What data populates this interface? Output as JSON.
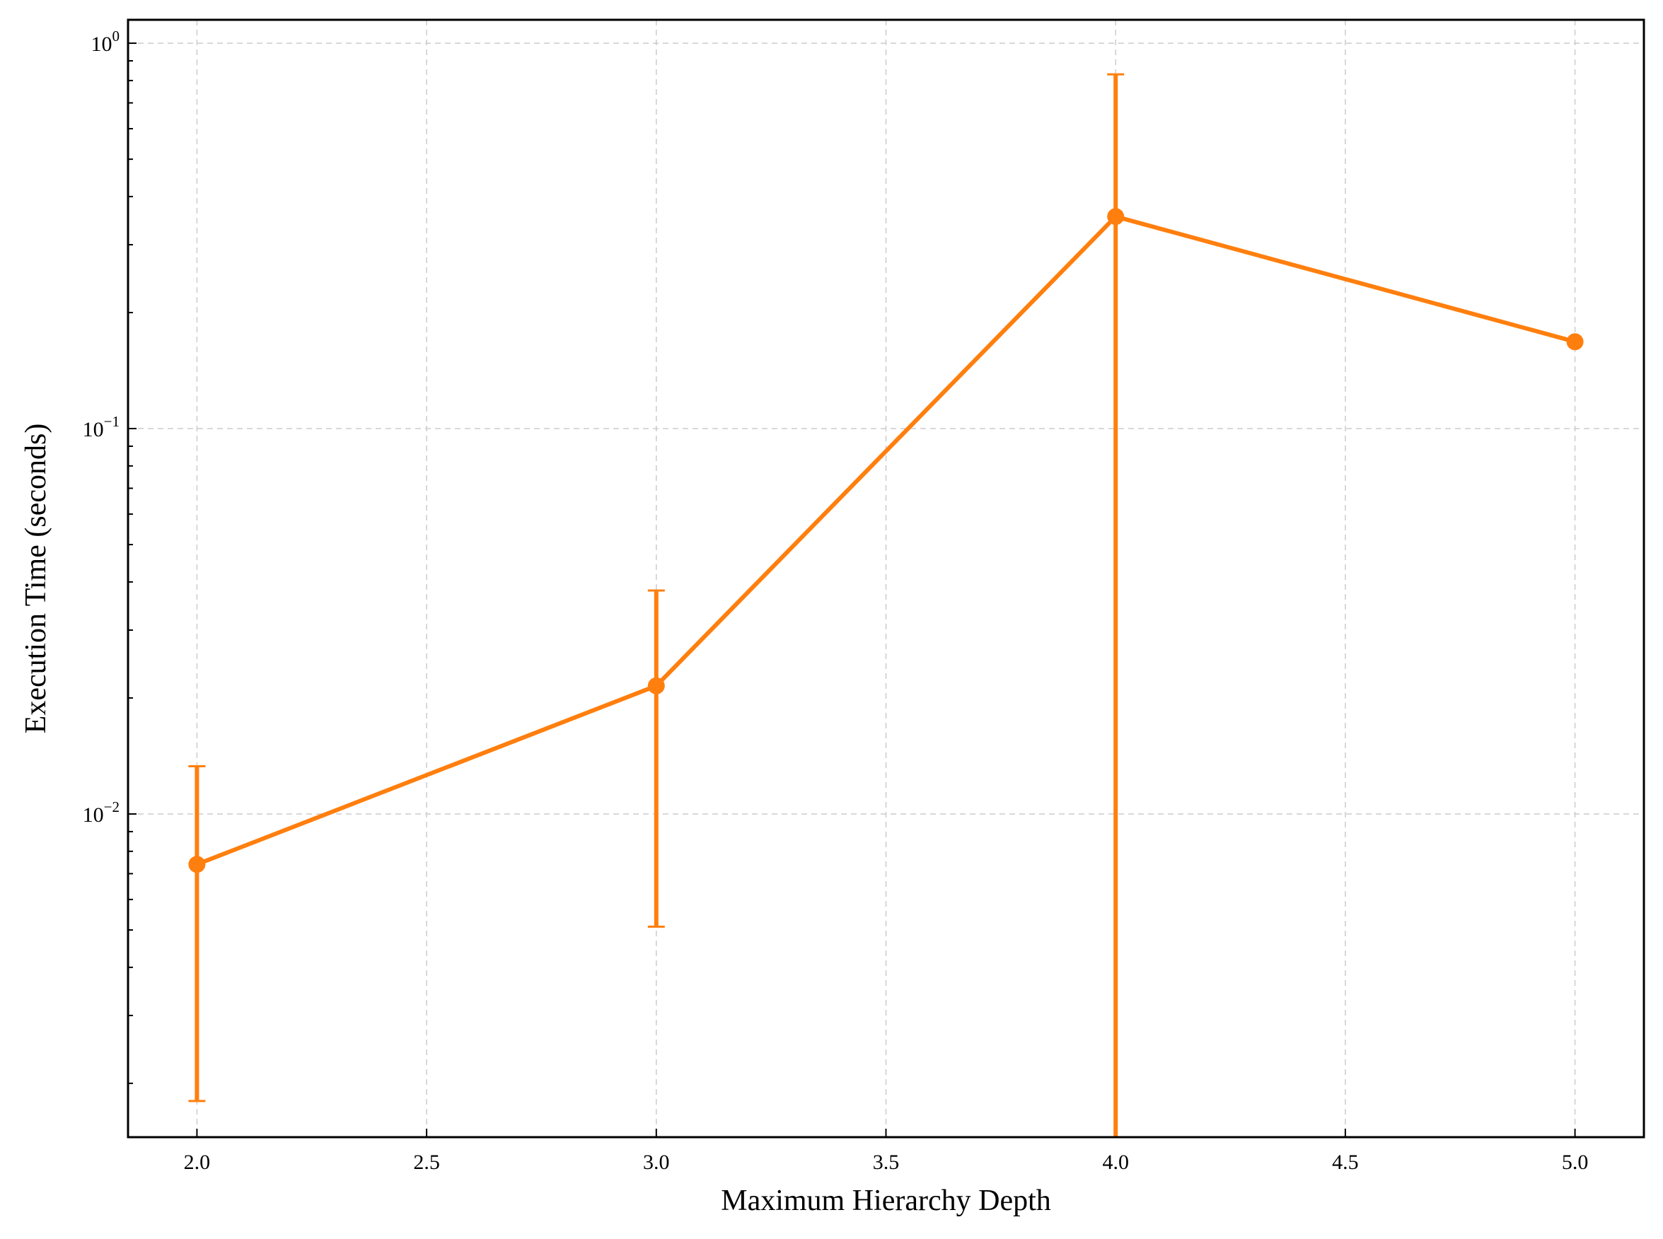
{
  "chart_data": {
    "type": "line",
    "xlabel": "Maximum Hierarchy Depth",
    "ylabel": "Execution Time (seconds)",
    "xlim": [
      1.85,
      5.15
    ],
    "ylim": [
      0.00145,
      1.15
    ],
    "yscale": "log",
    "grid": true,
    "color": "#ff7f0e",
    "x_ticks": [
      {
        "value": 2.0,
        "label": "2.0"
      },
      {
        "value": 2.5,
        "label": "2.5"
      },
      {
        "value": 3.0,
        "label": "3.0"
      },
      {
        "value": 3.5,
        "label": "3.5"
      },
      {
        "value": 4.0,
        "label": "4.0"
      },
      {
        "value": 4.5,
        "label": "4.5"
      },
      {
        "value": 5.0,
        "label": "5.0"
      }
    ],
    "y_ticks": [
      {
        "value": 0.01,
        "base": "10",
        "exp": "−2"
      },
      {
        "value": 0.1,
        "base": "10",
        "exp": "−1"
      },
      {
        "value": 1,
        "base": "10",
        "exp": "0"
      }
    ],
    "series": [
      {
        "points": [
          {
            "x": 2.0,
            "y": 0.0074,
            "err_low": 0.0018,
            "err_high": 0.0133,
            "cap_low": true
          },
          {
            "x": 3.0,
            "y": 0.0215,
            "err_low": 0.0051,
            "err_high": 0.038,
            "cap_low": true
          },
          {
            "x": 4.0,
            "y": 0.355,
            "err_low": 0.00145,
            "err_high": 0.83,
            "cap_low": false
          },
          {
            "x": 5.0,
            "y": 0.168,
            "err_low": null,
            "err_high": null,
            "cap_low": false
          }
        ]
      }
    ]
  }
}
